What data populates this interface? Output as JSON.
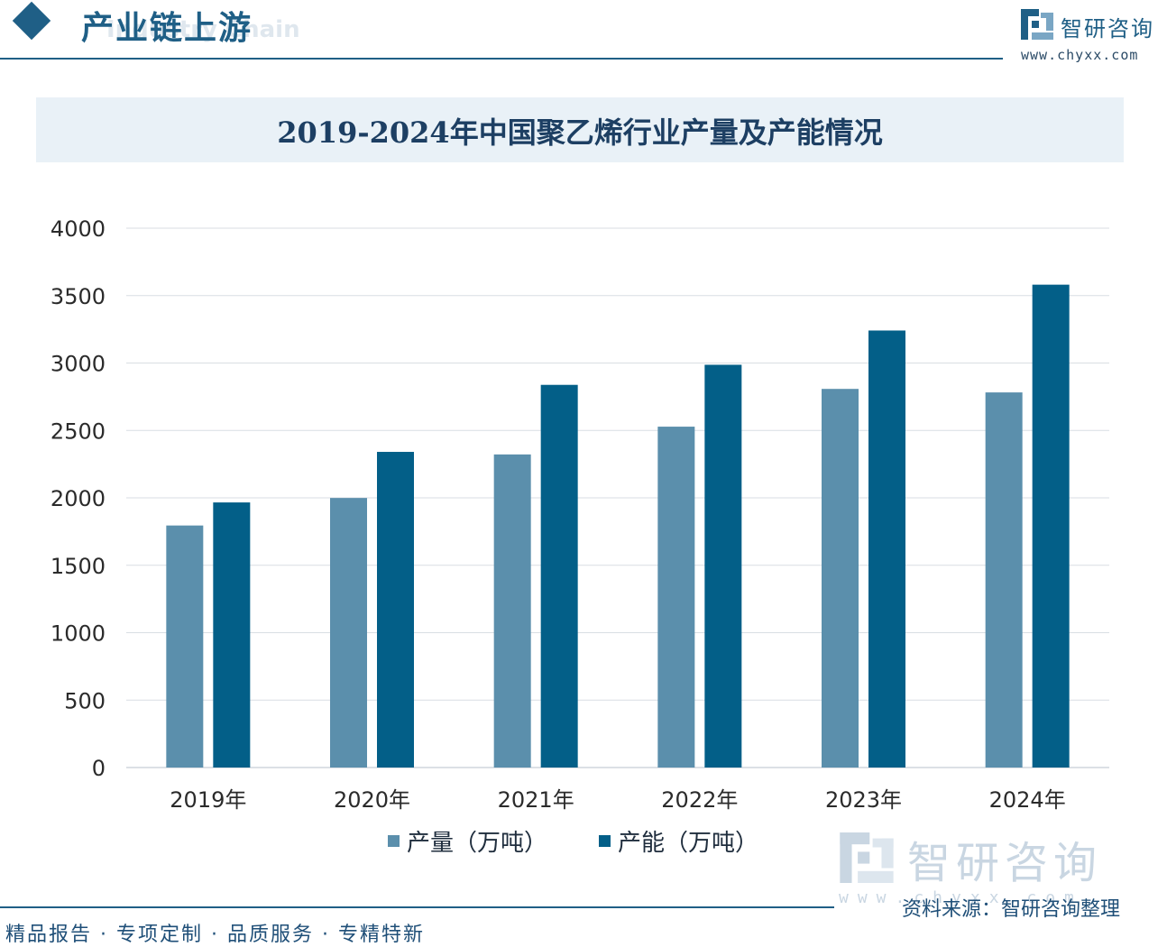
{
  "header": {
    "section_title": "产业链上游",
    "section_title_en": "Industry Chain",
    "brand_name": "智研咨询",
    "brand_url": "www.chyxx.com"
  },
  "chart_data": {
    "type": "bar",
    "title": "2019-2024年中国聚乙烯行业产量及产能情况",
    "categories": [
      "2019年",
      "2020年",
      "2021年",
      "2022年",
      "2023年",
      "2024年"
    ],
    "series": [
      {
        "name": "产量（万吨）",
        "color": "#5b8fac",
        "values": [
          1795,
          1999,
          2322,
          2528,
          2808,
          2782
        ]
      },
      {
        "name": "产能（万吨）",
        "color": "#035f88",
        "values": [
          1966,
          2341,
          2838,
          2987,
          3241,
          3581
        ]
      }
    ],
    "ylim": [
      0,
      4000
    ],
    "yticks": [
      0,
      500,
      1000,
      1500,
      2000,
      2500,
      3000,
      3500,
      4000
    ],
    "grid": true,
    "legend_position": "bottom"
  },
  "watermark": {
    "name": "智研咨询",
    "url": "www.chyxx.com"
  },
  "source": "资料来源：智研咨询整理",
  "footer": "精品报告 · 专项定制 · 品质服务 · 专精特新"
}
